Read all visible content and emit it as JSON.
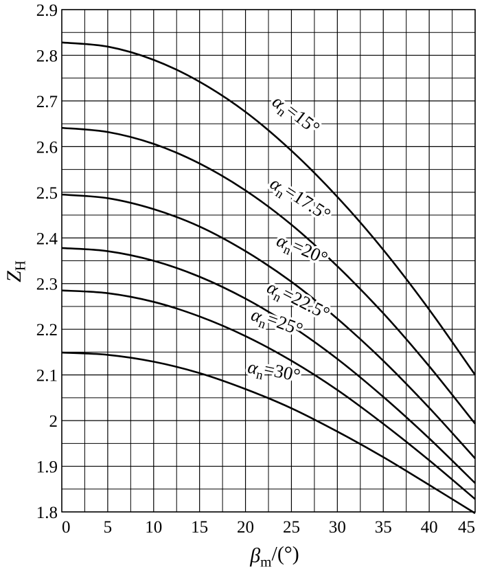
{
  "chart_data": {
    "type": "line",
    "x_label": "βm/(°)",
    "y_label": "ZH",
    "x": [
      0,
      5,
      10,
      15,
      20,
      25,
      30,
      35,
      40,
      45
    ],
    "series": [
      {
        "name": "αn=15°",
        "color": "#000000",
        "values": [
          2.828,
          2.819,
          2.79,
          2.742,
          2.676,
          2.591,
          2.49,
          2.374,
          2.243,
          2.1
        ]
      },
      {
        "name": "αn=17.5°",
        "color": "#000000",
        "values": [
          2.641,
          2.632,
          2.606,
          2.563,
          2.504,
          2.429,
          2.338,
          2.235,
          2.119,
          1.993
        ]
      },
      {
        "name": "αn=20°",
        "color": "#000000",
        "values": [
          2.495,
          2.487,
          2.463,
          2.425,
          2.371,
          2.304,
          2.223,
          2.131,
          2.028,
          1.917
        ]
      },
      {
        "name": "αn=22.5°",
        "color": "#000000",
        "values": [
          2.378,
          2.371,
          2.35,
          2.315,
          2.267,
          2.207,
          2.135,
          2.052,
          1.961,
          1.863
        ]
      },
      {
        "name": "αn=25°",
        "color": "#000000",
        "values": [
          2.285,
          2.279,
          2.26,
          2.228,
          2.185,
          2.131,
          2.067,
          1.993,
          1.913,
          1.828
        ]
      },
      {
        "name": "αn=30°",
        "color": "#000000",
        "values": [
          2.149,
          2.144,
          2.129,
          2.104,
          2.069,
          2.027,
          1.976,
          1.92,
          1.859,
          1.797
        ]
      }
    ],
    "xlim": [
      0,
      45
    ],
    "ylim": [
      1.8,
      2.9
    ],
    "xticks": [
      0,
      5,
      10,
      15,
      20,
      25,
      30,
      35,
      40,
      45
    ],
    "yticks": [
      1.8,
      1.9,
      2,
      2.1,
      2.2,
      2.3,
      2.4,
      2.5,
      2.6,
      2.7,
      2.8,
      2.9
    ],
    "x_minor_grid": [
      2.5,
      7.5,
      12.5,
      17.5,
      22.5,
      27.5,
      32.5,
      37.5,
      42.5
    ],
    "y_minor_grid": [
      1.85,
      1.95,
      2.05,
      2.15,
      2.25,
      2.35,
      2.45,
      2.55,
      2.65,
      2.75,
      2.85
    ],
    "grid": true
  }
}
